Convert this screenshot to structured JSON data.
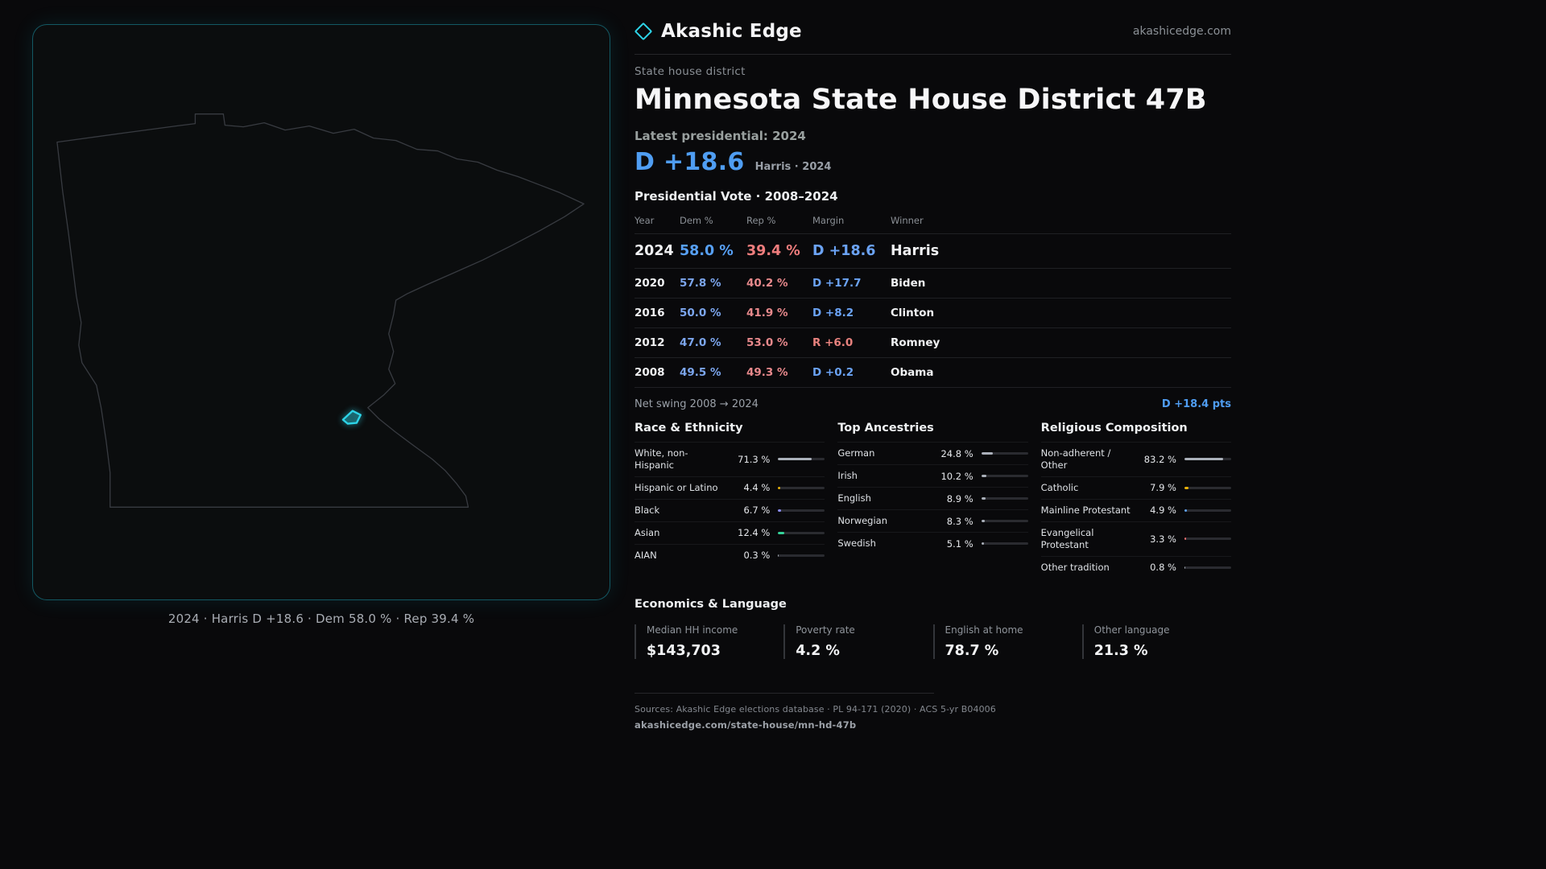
{
  "colors": {
    "accent": "#2dd4e8",
    "dem": "#4f9df2",
    "rep": "#e8827e",
    "bar_neutral": "#aab0ba"
  },
  "brand": {
    "name": "Akashic Edge",
    "domain": "akashicedge.com"
  },
  "page": {
    "kicker": "State house district",
    "title": "Minnesota State House District 47B",
    "latest_label": "Latest presidential: 2024",
    "headline_margin": "D +18.6",
    "headline_sub": "Harris · 2024"
  },
  "map": {
    "caption": "2024 · Harris D +18.6 · Dem 58.0 % · Rep 39.4 %"
  },
  "vote_table": {
    "title": "Presidential Vote · 2008–2024",
    "headers": [
      "Year",
      "Dem %",
      "Rep %",
      "Margin",
      "Winner"
    ],
    "rows": [
      {
        "year": "2024",
        "dem": "58.0 %",
        "rep": "39.4 %",
        "margin": "D +18.6",
        "winner": "Harris"
      },
      {
        "year": "2020",
        "dem": "57.8 %",
        "rep": "40.2 %",
        "margin": "D +17.7",
        "winner": "Biden"
      },
      {
        "year": "2016",
        "dem": "50.0 %",
        "rep": "41.9 %",
        "margin": "D +8.2",
        "winner": "Clinton"
      },
      {
        "year": "2012",
        "dem": "47.0 %",
        "rep": "53.0 %",
        "margin": "R +6.0",
        "winner": "Romney"
      },
      {
        "year": "2008",
        "dem": "49.5 %",
        "rep": "49.3 %",
        "margin": "D +0.2",
        "winner": "Obama"
      }
    ],
    "net_swing_label": "Net swing 2008 → 2024",
    "net_swing_value": "D +18.4 pts"
  },
  "demographics": {
    "race": {
      "title": "Race & Ethnicity",
      "items": [
        {
          "label": "White, non-Hispanic",
          "value": "71.3 %",
          "pct": 71.3,
          "color": "#aab0ba"
        },
        {
          "label": "Hispanic or Latino",
          "value": "4.4 %",
          "pct": 4.4,
          "color": "#eab308"
        },
        {
          "label": "Black",
          "value": "6.7 %",
          "pct": 6.7,
          "color": "#8b8df8"
        },
        {
          "label": "Asian",
          "value": "12.4 %",
          "pct": 12.4,
          "color": "#34d399"
        },
        {
          "label": "AIAN",
          "value": "0.3 %",
          "pct": 0.3,
          "color": "#aab0ba"
        }
      ]
    },
    "ancestries": {
      "title": "Top Ancestries",
      "items": [
        {
          "label": "German",
          "value": "24.8 %",
          "pct": 24.8,
          "color": "#aab0ba"
        },
        {
          "label": "Irish",
          "value": "10.2 %",
          "pct": 10.2,
          "color": "#aab0ba"
        },
        {
          "label": "English",
          "value": "8.9 %",
          "pct": 8.9,
          "color": "#aab0ba"
        },
        {
          "label": "Norwegian",
          "value": "8.3 %",
          "pct": 8.3,
          "color": "#aab0ba"
        },
        {
          "label": "Swedish",
          "value": "5.1 %",
          "pct": 5.1,
          "color": "#aab0ba"
        }
      ]
    },
    "religion": {
      "title": "Religious Composition",
      "items": [
        {
          "label": "Non-adherent / Other",
          "value": "83.2 %",
          "pct": 83.2,
          "color": "#aab0ba"
        },
        {
          "label": "Catholic",
          "value": "7.9 %",
          "pct": 7.9,
          "color": "#eab308"
        },
        {
          "label": "Mainline Protestant",
          "value": "4.9 %",
          "pct": 4.9,
          "color": "#60a5fa"
        },
        {
          "label": "Evangelical Protestant",
          "value": "3.3 %",
          "pct": 3.3,
          "color": "#f87171"
        },
        {
          "label": "Other tradition",
          "value": "0.8 %",
          "pct": 0.8,
          "color": "#aab0ba"
        }
      ]
    }
  },
  "economics": {
    "title": "Economics & Language",
    "stats": [
      {
        "label": "Median HH income",
        "value": "$143,703"
      },
      {
        "label": "Poverty rate",
        "value": "4.2 %"
      },
      {
        "label": "English at home",
        "value": "78.7 %"
      },
      {
        "label": "Other language",
        "value": "21.3 %"
      }
    ]
  },
  "footer": {
    "sources": "Sources: Akashic Edge elections database · PL 94-171 (2020) · ACS 5-yr B04006",
    "permalink": "akashicedge.com/state-house/mn-hd-47b"
  }
}
